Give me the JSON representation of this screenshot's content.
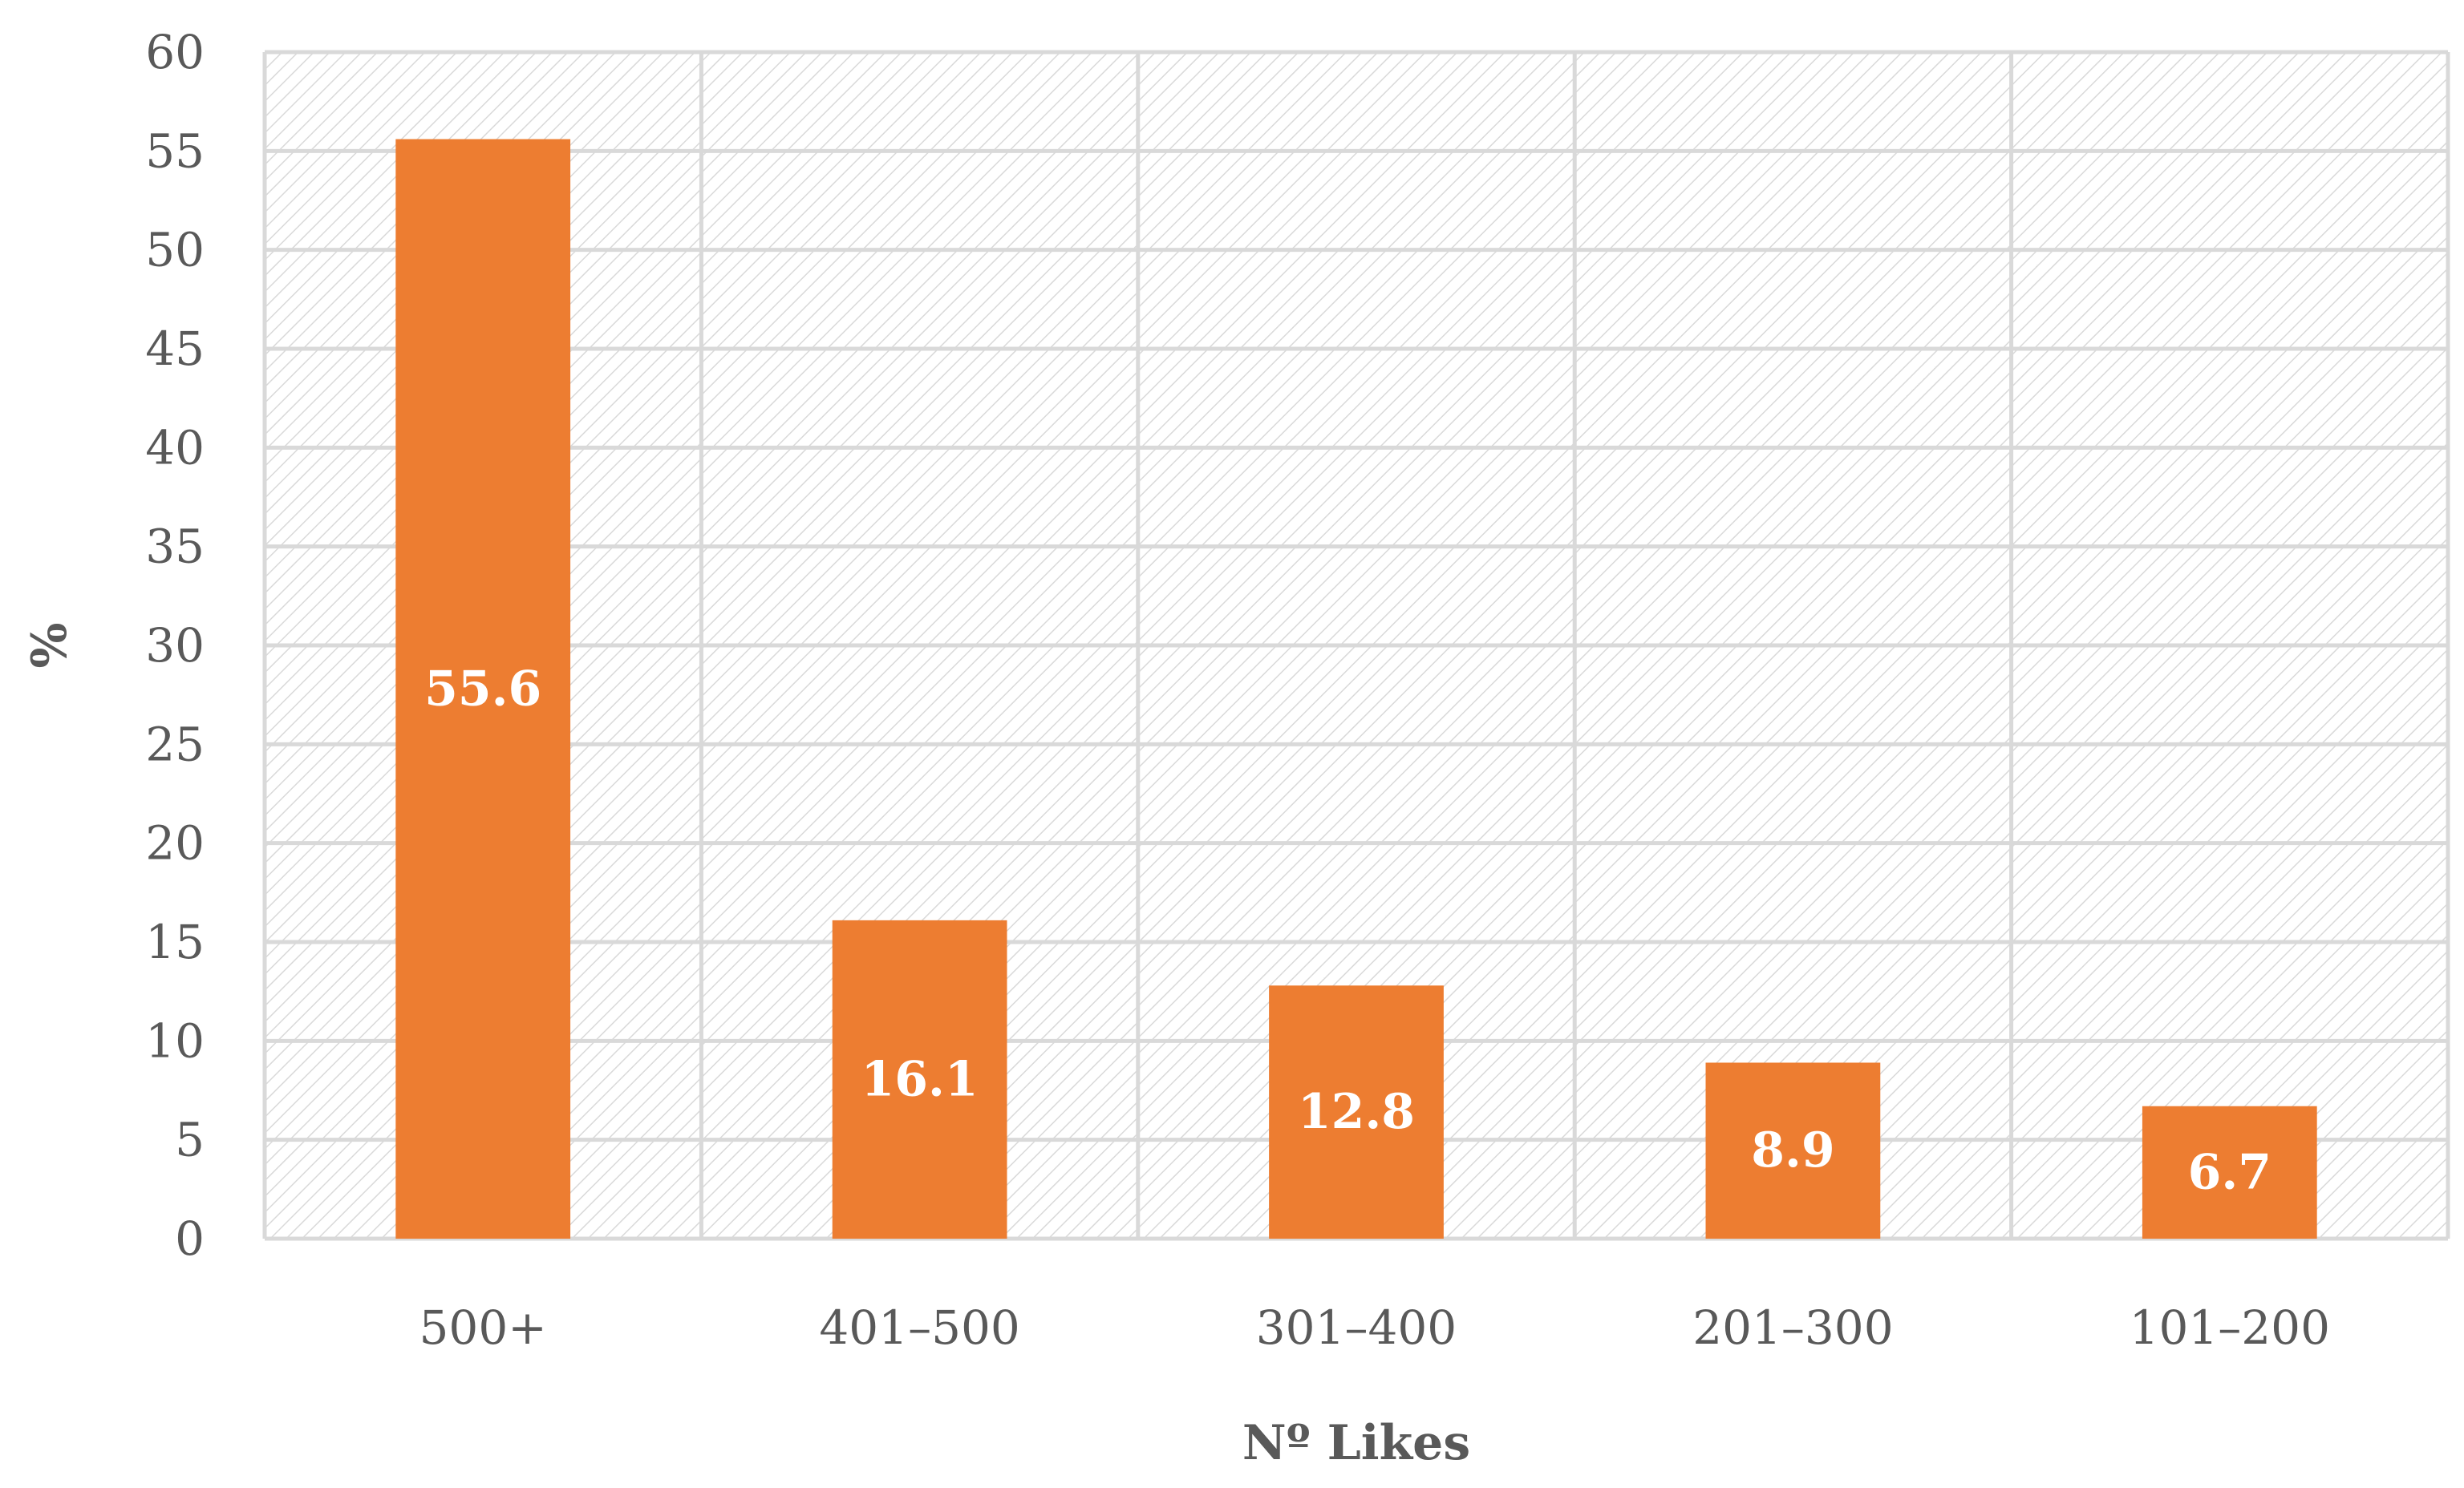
{
  "chart_data": {
    "type": "bar",
    "categories": [
      "500+",
      "401–500",
      "301–400",
      "201–300",
      "101–200"
    ],
    "values": [
      55.6,
      16.1,
      12.8,
      8.9,
      6.7
    ],
    "data_labels": [
      "55.6",
      "16.1",
      "12.8",
      "8.9",
      "6.7"
    ],
    "title": "",
    "xlabel": "Nº Likes",
    "ylabel": "%",
    "ylim": [
      0,
      60
    ],
    "yticks": [
      0,
      5,
      10,
      15,
      20,
      25,
      30,
      35,
      40,
      45,
      50,
      55,
      60
    ],
    "grid": true,
    "legend": "none",
    "colors": {
      "bar": "#ED7D31",
      "grid": "#D9D9D9",
      "hatch": "#D9D9D9",
      "text": "#595959",
      "label": "#FFFFFF"
    }
  }
}
